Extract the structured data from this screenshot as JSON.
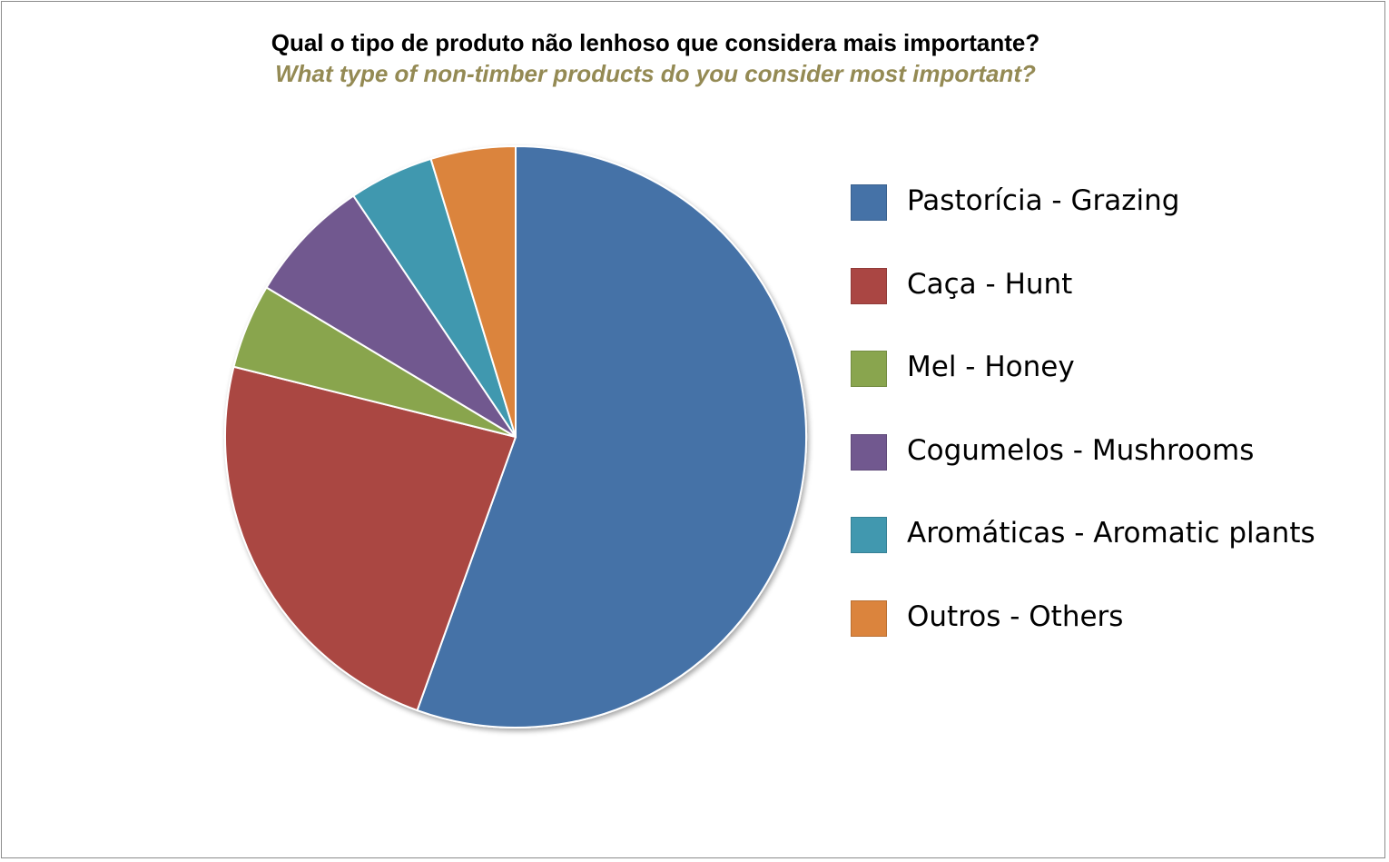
{
  "chart_data": {
    "type": "pie",
    "title": "Qual o tipo de produto não lenhoso que considera mais importante?",
    "subtitle": "What type of non-timber products do you consider most important?",
    "categories": [
      "Pastorícia - Grazing",
      "Caça - Hunt",
      "Mel - Honey",
      "Cogumelos - Mushrooms",
      "Aromáticas - Aromatic plants",
      "Outros - Others"
    ],
    "values": [
      56.5,
      23.8,
      4.8,
      7.1,
      4.8,
      4.8
    ],
    "colors": [
      "#4572A7",
      "#AA4643",
      "#89A54E",
      "#71588F",
      "#4198AF",
      "#DB843D"
    ],
    "legend_position": "right"
  },
  "style": {
    "subtitle_color": "#948A54",
    "slice_border": "#ffffff",
    "frame_border": "#8c8c8c"
  }
}
